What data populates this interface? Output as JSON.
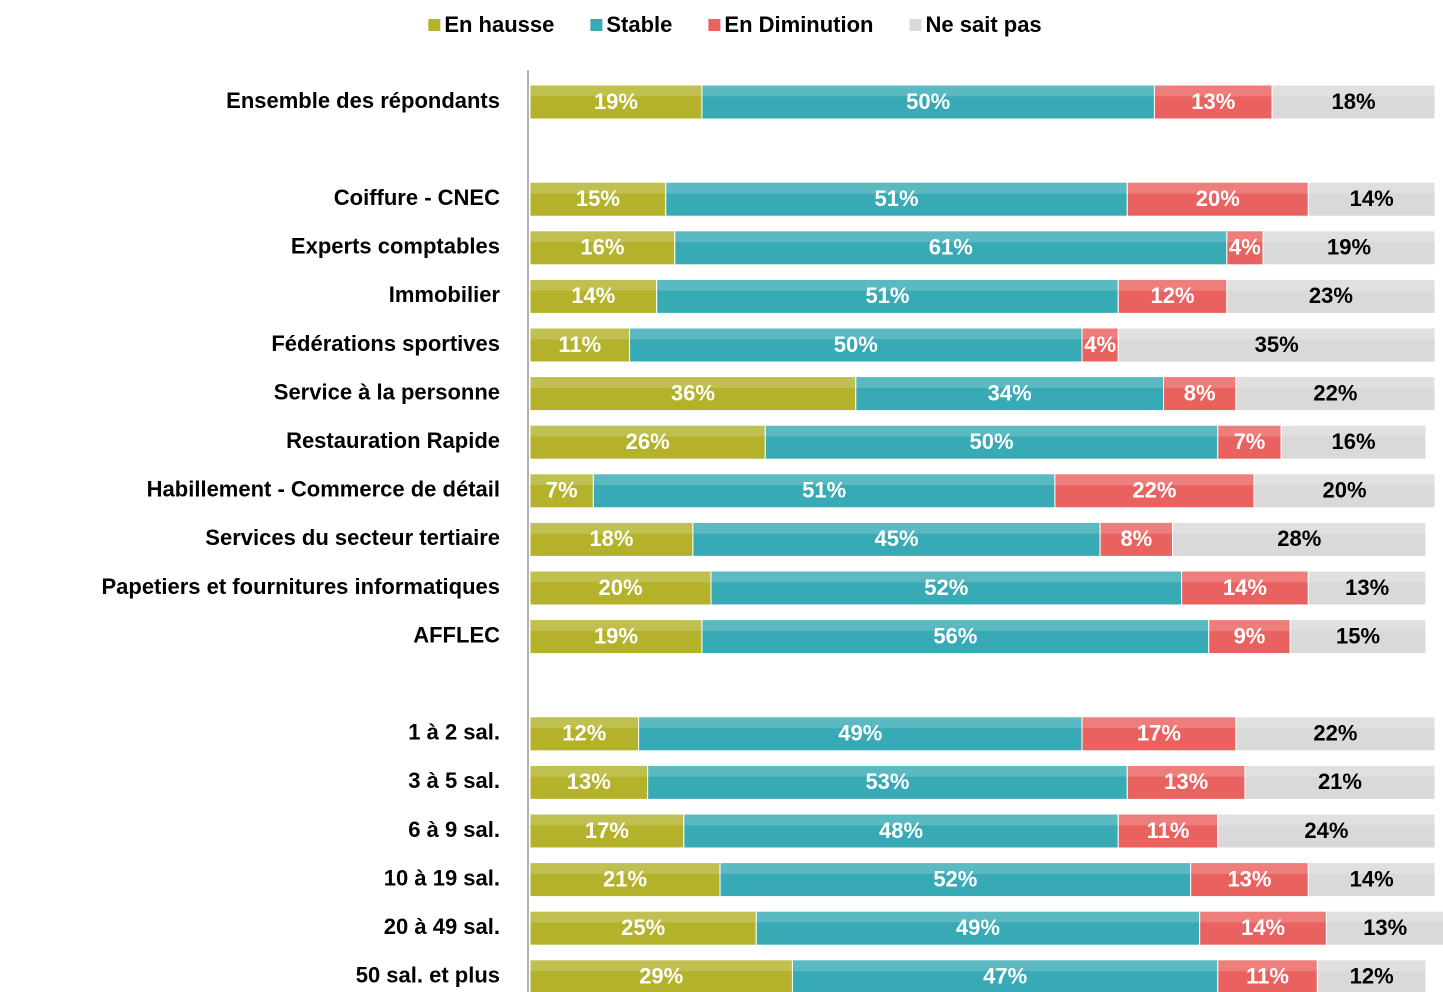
{
  "chart_data": {
    "type": "stacked-bar-horizontal",
    "categories": [
      "Ensemble des répondants",
      null,
      "Coiffure - CNEC",
      "Experts comptables",
      "Immobilier",
      "Fédérations sportives",
      "Service à la personne",
      "Restauration Rapide",
      "Habillement - Commerce de détail",
      "Services du secteur tertiaire",
      "Papetiers et fournitures informatiques",
      "AFFLEC",
      null,
      "1 à 2 sal.",
      "3 à 5 sal.",
      "6 à 9 sal.",
      "10 à 19 sal.",
      "20 à 49 sal.",
      "50 sal. et plus"
    ],
    "series": [
      {
        "name": "En hausse",
        "color": "#b3b22a",
        "values": [
          19,
          null,
          15,
          16,
          14,
          11,
          36,
          26,
          7,
          18,
          20,
          19,
          null,
          12,
          13,
          17,
          21,
          25,
          29
        ],
        "value_labels": [
          "19%",
          null,
          "15%",
          "16%",
          "14%",
          "11%",
          "36%",
          "26%",
          "7%",
          "18%",
          "20%",
          "19%",
          null,
          "12%",
          "13%",
          "17%",
          "21%",
          "25%",
          "29%"
        ]
      },
      {
        "name": "Stable",
        "color": "#38aab5",
        "values": [
          50,
          null,
          51,
          61,
          51,
          50,
          34,
          50,
          51,
          45,
          52,
          56,
          null,
          49,
          53,
          48,
          52,
          49,
          47
        ],
        "value_labels": [
          "50%",
          null,
          "51%",
          "61%",
          "51%",
          "50%",
          "34%",
          "50%",
          "51%",
          "45%",
          "52%",
          "56%",
          null,
          "49%",
          "53%",
          "48%",
          "52%",
          "49%",
          "47%"
        ]
      },
      {
        "name": "En Diminution",
        "color": "#e9625f",
        "values": [
          13,
          null,
          20,
          4,
          12,
          4,
          8,
          7,
          22,
          8,
          14,
          9,
          null,
          17,
          13,
          11,
          13,
          14,
          11
        ],
        "value_labels": [
          "13%",
          null,
          "20%",
          "4%",
          "12%",
          "4%",
          "8%",
          "7%",
          "22%",
          "8%",
          "14%",
          "9%",
          null,
          "17%",
          "13%",
          "11%",
          "13%",
          "14%",
          "11%"
        ]
      },
      {
        "name": "Ne sait pas",
        "color": "#d9d9d9",
        "values": [
          18,
          null,
          14,
          19,
          23,
          35,
          22,
          16,
          20,
          28,
          13,
          15,
          null,
          22,
          21,
          24,
          14,
          13,
          12
        ],
        "value_labels": [
          "18%",
          null,
          "14%",
          "19%",
          "23%",
          "35%",
          "22%",
          "16%",
          "20%",
          "28%",
          "13%",
          "15%",
          null,
          "22%",
          "21%",
          "24%",
          "14%",
          "13%",
          "12%"
        ]
      }
    ],
    "legend": "top"
  }
}
